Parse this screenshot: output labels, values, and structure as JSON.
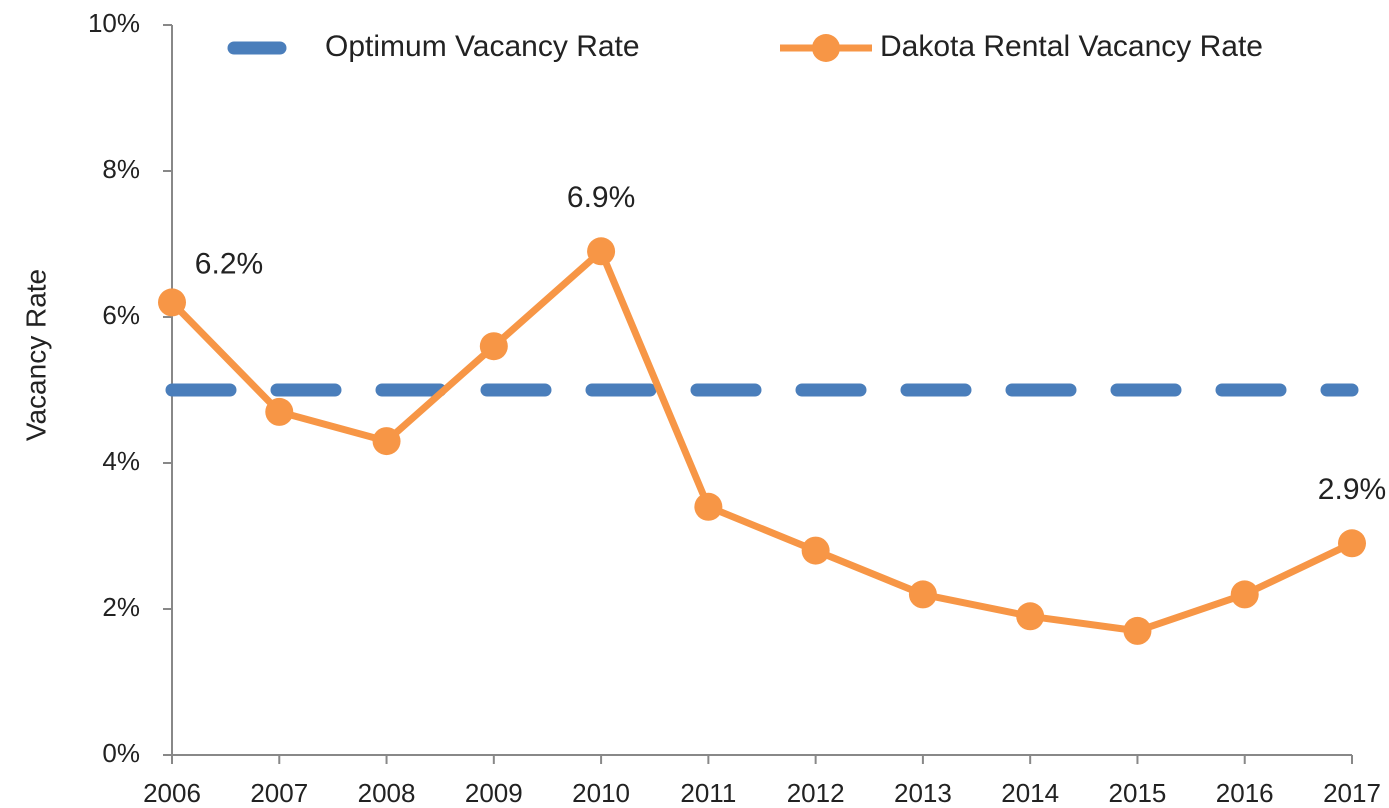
{
  "chart_data": {
    "type": "line",
    "y_label": "Vacancy Rate",
    "categories": [
      "2006",
      "2007",
      "2008",
      "2009",
      "2010",
      "2011",
      "2012",
      "2013",
      "2014",
      "2015",
      "2016",
      "2017"
    ],
    "series": [
      {
        "name": "Optimum Vacancy Rate",
        "color": "#4a7ebb",
        "dashed": true,
        "markers": false,
        "values": [
          5,
          5,
          5,
          5,
          5,
          5,
          5,
          5,
          5,
          5,
          5,
          5
        ]
      },
      {
        "name": "Dakota Rental Vacancy Rate",
        "color": "#f79646",
        "dashed": false,
        "markers": true,
        "values": [
          6.2,
          4.7,
          4.3,
          5.6,
          6.9,
          3.4,
          2.8,
          2.2,
          1.9,
          1.7,
          2.2,
          2.9
        ],
        "value_labels": [
          "6.2%",
          null,
          null,
          null,
          "6.9%",
          null,
          null,
          null,
          null,
          null,
          null,
          "2.9%"
        ]
      }
    ],
    "ylim": [
      0,
      10
    ],
    "yticks": [
      {
        "value": 0,
        "label": "0%"
      },
      {
        "value": 2,
        "label": "2%"
      },
      {
        "value": 4,
        "label": "4%"
      },
      {
        "value": 6,
        "label": "6%"
      },
      {
        "value": 8,
        "label": "8%"
      },
      {
        "value": 10,
        "label": "10%"
      }
    ],
    "grid": false,
    "legend": "top"
  }
}
